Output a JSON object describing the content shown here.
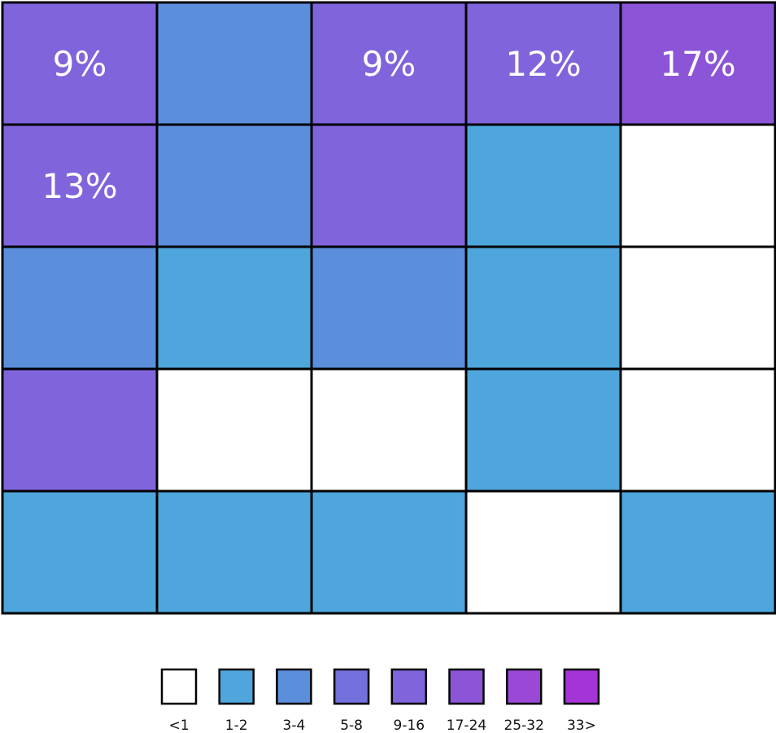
{
  "chart_data": {
    "type": "heatmap",
    "title": "",
    "rows": 5,
    "cols": 5,
    "cells": [
      [
        "9-16",
        "3-4",
        "9-16",
        "9-16",
        "17-24"
      ],
      [
        "9-16",
        "3-4",
        "9-16",
        "1-2",
        "<1"
      ],
      [
        "3-4",
        "1-2",
        "3-4",
        "1-2",
        "<1"
      ],
      [
        "9-16",
        "<1",
        "<1",
        "1-2",
        "<1"
      ],
      [
        "1-2",
        "1-2",
        "1-2",
        "<1",
        "1-2"
      ]
    ],
    "cell_labels": [
      [
        "9%",
        "",
        "9%",
        "12%",
        "17%"
      ],
      [
        "13%",
        "",
        "",
        "",
        ""
      ],
      [
        "",
        "",
        "",
        "",
        ""
      ],
      [
        "",
        "",
        "",
        "",
        ""
      ],
      [
        "",
        "",
        "",
        "",
        ""
      ]
    ],
    "legend": {
      "placement": "bottom-center",
      "bins": [
        "<1",
        "1-2",
        "3-4",
        "5-8",
        "9-16",
        "17-24",
        "25-32",
        "33>"
      ],
      "colors": [
        "#ffffff",
        "#4ea6dc",
        "#5b8fdc",
        "#7270dc",
        "#8064db",
        "#8c55d8",
        "#9a48d6",
        "#a534d6"
      ]
    }
  }
}
